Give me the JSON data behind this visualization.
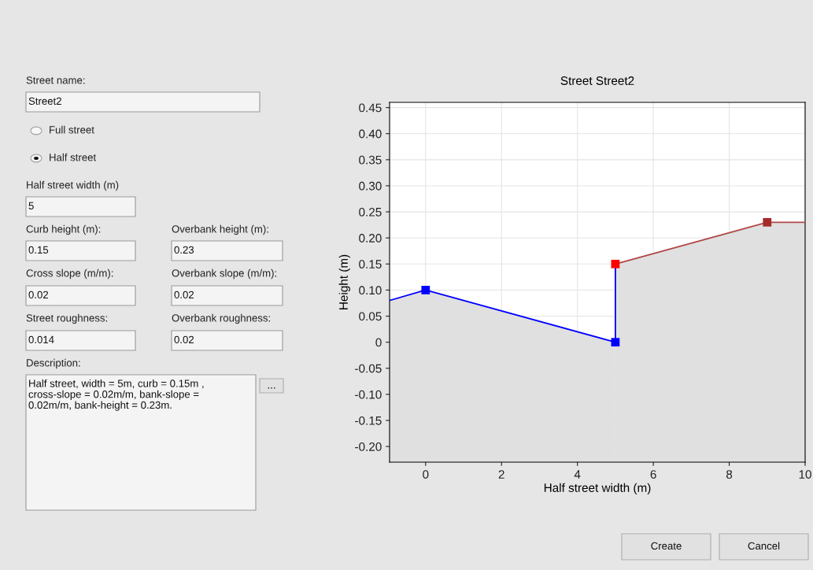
{
  "chart_data": [
    {
      "type": "other",
      "annotations": [
        "Street name:",
        "Street2",
        "Full street",
        "Half street",
        "Half street width (m)",
        "5",
        "Curb height (m):",
        "0.15",
        "Overbank height (m):",
        "0.23",
        "Cross slope (m/m):",
        "0.02",
        "Overbank slope (m/m):",
        "0.02",
        "Street roughness:",
        "0.014",
        "Overbank roughness:",
        "0.02",
        "Description:",
        "Half street, width = 5m, curb = 0.15m ,\ncross-slope = 0.02m/m, bank-slope =\n0.02m/m, bank-height = 0.23m.",
        "...",
        "Create",
        "Cancel"
      ]
    },
    {
      "type": "line",
      "title": "Street Street2",
      "xlabel": "Half street width (m)",
      "ylabel": "Height (m)",
      "xlim": [
        -0.95,
        10
      ],
      "xticks": [
        0,
        2,
        4,
        6,
        8,
        10
      ],
      "ylim": [
        -0.23,
        0.46
      ],
      "yticks": [
        {
          "value": -0.2,
          "label": "-0.20"
        },
        {
          "value": -0.15,
          "label": "-0.15"
        },
        {
          "value": -0.1,
          "label": "-0.10"
        },
        {
          "value": -0.05,
          "label": "-0.05"
        },
        {
          "value": 0,
          "label": "0"
        },
        {
          "value": 0.05,
          "label": "0.05"
        },
        {
          "value": 0.1,
          "label": "0.10"
        },
        {
          "value": 0.15,
          "label": "0.15"
        },
        {
          "value": 0.2,
          "label": "0.20"
        },
        {
          "value": 0.25,
          "label": "0.25"
        },
        {
          "value": 0.3,
          "label": "0.30"
        },
        {
          "value": 0.35,
          "label": "0.35"
        },
        {
          "value": 0.4,
          "label": "0.40"
        },
        {
          "value": 0.45,
          "label": "0.45"
        }
      ],
      "grid": true,
      "series": [
        {
          "type": "line",
          "color": "#0000ff",
          "x": [
            -0.95,
            0,
            5,
            5
          ],
          "values": [
            0.08,
            0.1,
            0,
            0.15
          ]
        },
        {
          "type": "line",
          "color": "#b04848",
          "x": [
            5,
            9,
            10
          ],
          "values": [
            0.15,
            0.23,
            0.23
          ]
        },
        {
          "type": "scatter",
          "color": "#0000ff",
          "marker": "square",
          "x": [
            0,
            5
          ],
          "values": [
            0.1,
            0
          ]
        },
        {
          "type": "scatter",
          "color": "#ff0000",
          "marker": "square",
          "x": [
            5
          ],
          "values": [
            0.15
          ]
        },
        {
          "type": "scatter",
          "color": "#a52a2a",
          "marker": "square",
          "x": [
            9
          ],
          "values": [
            0.23
          ]
        }
      ]
    }
  ]
}
